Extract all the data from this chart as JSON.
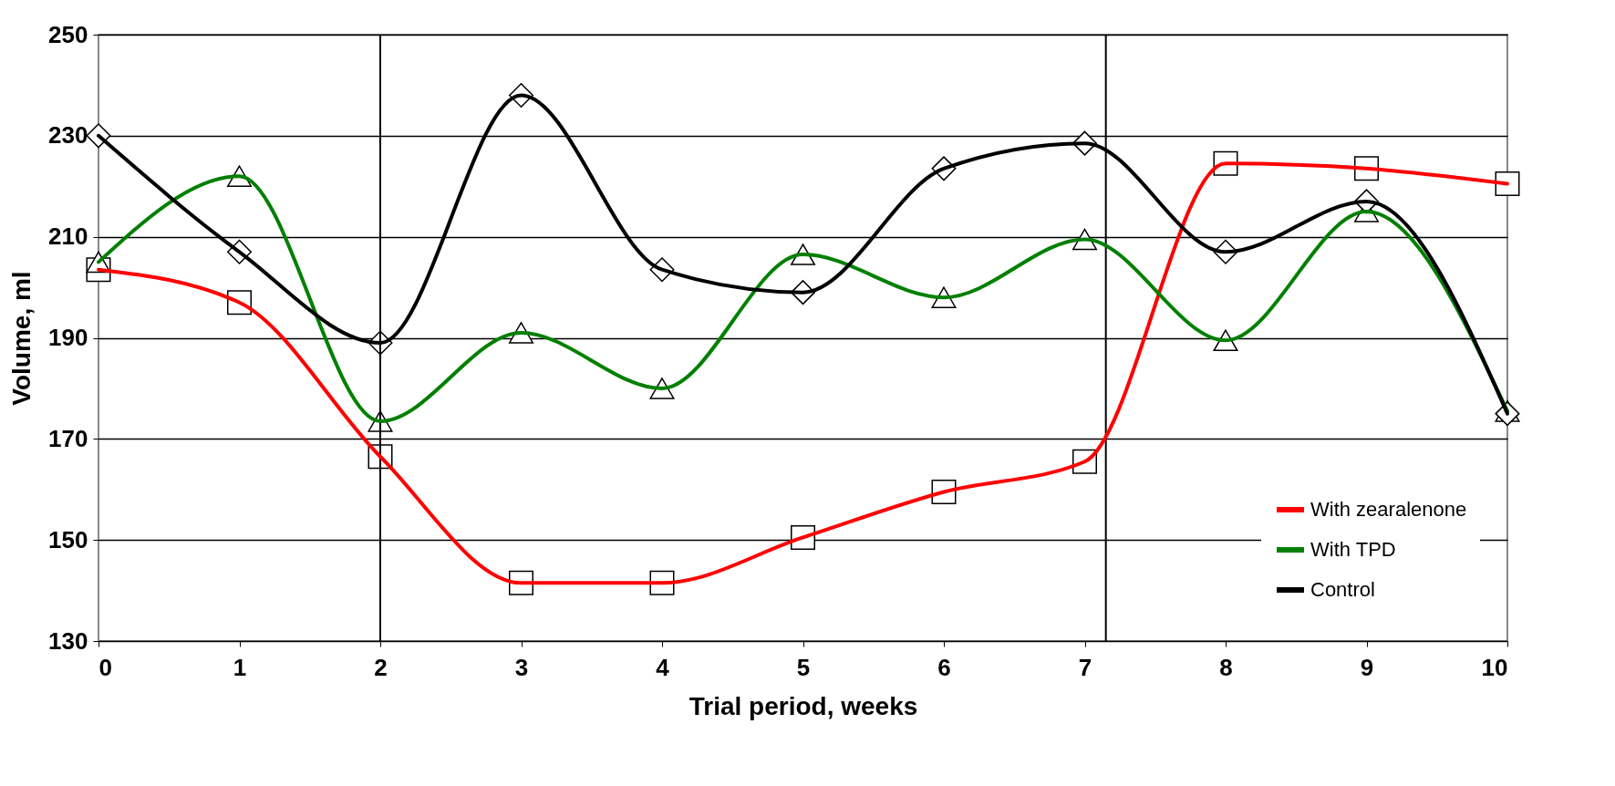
{
  "chart_data": {
    "type": "line",
    "xlabel": "Trial period, weeks",
    "ylabel": "Volume, ml",
    "x": [
      0,
      1,
      2,
      3,
      4,
      5,
      6,
      7,
      8,
      9,
      10
    ],
    "xlim": [
      0,
      10
    ],
    "xticks": [
      0,
      1,
      2,
      3,
      4,
      5,
      6,
      7,
      8,
      9,
      10
    ],
    "ylim": [
      130,
      250
    ],
    "yticks": [
      130,
      150,
      170,
      190,
      210,
      230,
      250
    ],
    "grid": "y",
    "legend": "bottom right",
    "line_style": "solid",
    "ref_lines": [
      {
        "axis": "x",
        "value": 2,
        "color": "#000000"
      },
      {
        "axis": "x",
        "value": 7.15,
        "color": "#000000"
      }
    ],
    "series": [
      {
        "name": "With zearalenone",
        "color": "#ff0000",
        "marker": "square",
        "values": [
          203.5,
          197,
          166.5,
          141.5,
          141.5,
          150.5,
          159.5,
          165.5,
          224.5,
          223.5,
          220.5
        ]
      },
      {
        "name": "With TPD",
        "color": "#008000",
        "marker": "triangle",
        "values": [
          205,
          222,
          173.5,
          191,
          180,
          206.5,
          198,
          209.5,
          189.5,
          215,
          175.5
        ]
      },
      {
        "name": "Control",
        "color": "#000000",
        "marker": "diamond",
        "values": [
          230,
          207,
          189,
          238,
          203.5,
          199,
          223.5,
          228.5,
          207,
          217,
          175
        ]
      }
    ]
  }
}
